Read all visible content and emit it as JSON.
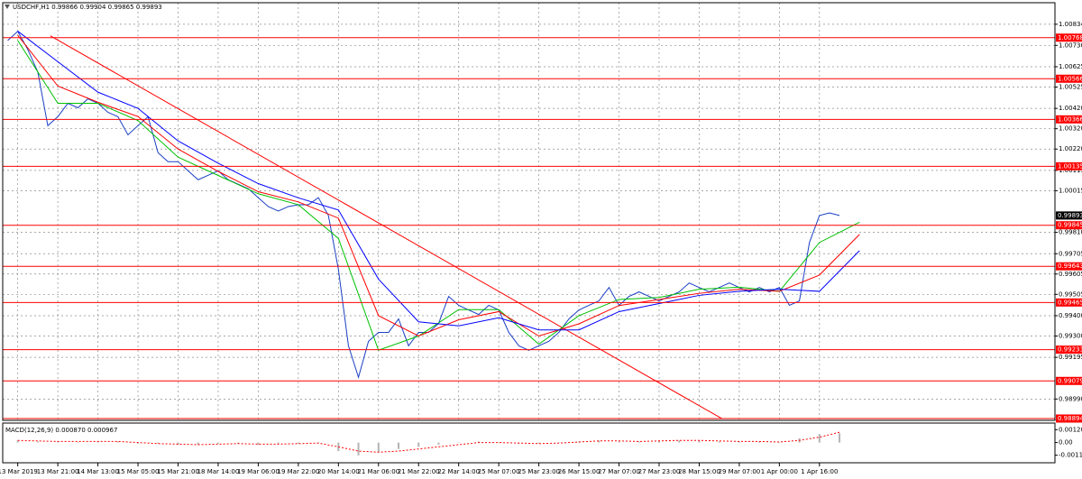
{
  "chart_data": [
    {
      "type": "line",
      "title": "USDCHF,H1 0.99866 0.99904 0.99865 0.99893",
      "xlim": [
        -6,
        414
      ],
      "ylim": [
        0.98885,
        1.0094
      ],
      "grid": true,
      "xticks": [
        {
          "value": 0,
          "label": "13 Mar 2019"
        },
        {
          "value": 16,
          "label": "13 Mar 21:00"
        },
        {
          "value": 32,
          "label": "14 Mar 13:00"
        },
        {
          "value": 48,
          "label": "15 Mar 05:00"
        },
        {
          "value": 64,
          "label": "15 Mar 21:00"
        },
        {
          "value": 80,
          "label": "18 Mar 14:00"
        },
        {
          "value": 96,
          "label": "19 Mar 06:00"
        },
        {
          "value": 112,
          "label": "19 Mar 22:00"
        },
        {
          "value": 128,
          "label": "20 Mar 14:00"
        },
        {
          "value": 144,
          "label": "21 Mar 06:00"
        },
        {
          "value": 160,
          "label": "21 Mar 22:00"
        },
        {
          "value": 176,
          "label": "22 Mar 14:00"
        },
        {
          "value": 192,
          "label": "25 Mar 07:00"
        },
        {
          "value": 208,
          "label": "25 Mar 23:00"
        },
        {
          "value": 224,
          "label": "26 Mar 15:00"
        },
        {
          "value": 240,
          "label": "27 Mar 07:00"
        },
        {
          "value": 256,
          "label": "27 Mar 23:00"
        },
        {
          "value": 272,
          "label": "28 Mar 15:00"
        },
        {
          "value": 288,
          "label": "29 Mar 07:00"
        },
        {
          "value": 304,
          "label": "1 Apr 00:00"
        },
        {
          "value": 320,
          "label": "1 Apr 16:00"
        }
      ],
      "yticks": [
        {
          "value": 1.00834,
          "label": "1.00834"
        },
        {
          "value": 1.0073,
          "label": "1.00730"
        },
        {
          "value": 1.00625,
          "label": "1.00625"
        },
        {
          "value": 1.00525,
          "label": "1.00525"
        },
        {
          "value": 1.0042,
          "label": "1.00420"
        },
        {
          "value": 1.0032,
          "label": "1.00320"
        },
        {
          "value": 1.0022,
          "label": "1.00220"
        },
        {
          "value": 1.00115,
          "label": "1.00115"
        },
        {
          "value": 1.00015,
          "label": "1.00015"
        },
        {
          "value": 0.9981,
          "label": "0.99810"
        },
        {
          "value": 0.99705,
          "label": "0.99705"
        },
        {
          "value": 0.99605,
          "label": "0.99605"
        },
        {
          "value": 0.99505,
          "label": "0.99505"
        },
        {
          "value": 0.994,
          "label": "0.99400"
        },
        {
          "value": 0.993,
          "label": "0.99300"
        },
        {
          "value": 0.99195,
          "label": "0.99195"
        },
        {
          "value": 0.9899,
          "label": "0.98990"
        }
      ],
      "levels": [
        1.00768,
        1.00566,
        1.00366,
        1.00135,
        0.99845,
        0.99643,
        0.99465,
        0.99233,
        0.99079,
        0.98894
      ],
      "level_color": "#ff0000",
      "current_price": 0.99893,
      "trendline": {
        "color": "#ff0000",
        "x": [
          13,
          281
        ],
        "values": [
          1.00777,
          0.98894
        ]
      },
      "series": [
        {
          "color": "#1a3fc4",
          "x": [
            -4,
            0,
            4,
            8,
            12,
            16,
            20,
            24,
            28,
            32,
            36,
            40,
            44,
            48,
            52,
            56,
            60,
            64,
            68,
            72,
            76,
            80,
            84,
            88,
            92,
            96,
            100,
            104,
            108,
            112,
            116,
            120,
            124,
            128,
            132,
            136,
            140,
            144,
            148,
            152,
            156,
            160,
            164,
            168,
            172,
            176,
            180,
            184,
            188,
            192,
            196,
            200,
            204,
            208,
            212,
            216,
            220,
            224,
            228,
            232,
            236,
            240,
            244,
            248,
            252,
            256,
            260,
            264,
            268,
            272,
            276,
            280,
            284,
            288,
            292,
            296,
            300,
            304,
            308,
            312,
            316,
            320,
            324,
            328
          ],
          "values": [
            1.00754,
            1.00799,
            1.0071,
            1.006,
            1.00335,
            1.00379,
            1.00445,
            1.00423,
            1.00467,
            1.00445,
            1.00401,
            1.00379,
            1.0029,
            1.00335,
            1.00379,
            1.00202,
            1.00158,
            1.00158,
            1.00113,
            1.00069,
            1.00091,
            1.00113,
            1.00069,
            1.00047,
            1.00025,
            0.99981,
            0.99937,
            0.99915,
            0.99937,
            0.99946,
            0.99946,
            0.99981,
            0.99893,
            0.99627,
            0.99252,
            0.99097,
            0.99274,
            0.99318,
            0.99318,
            0.99384,
            0.99252,
            0.99318,
            0.99318,
            0.99362,
            0.99495,
            0.99451,
            0.99428,
            0.99406,
            0.99451,
            0.99428,
            0.99318,
            0.99252,
            0.9923,
            0.99252,
            0.99274,
            0.99318,
            0.99384,
            0.99428,
            0.99451,
            0.99473,
            0.99539,
            0.99451,
            0.99495,
            0.99517,
            0.99495,
            0.99473,
            0.99495,
            0.99517,
            0.99561,
            0.99539,
            0.99517,
            0.99539,
            0.99561,
            0.99539,
            0.99517,
            0.99539,
            0.99517,
            0.99539,
            0.99451,
            0.99473,
            0.9976,
            0.99893,
            0.99906,
            0.99893
          ]
        },
        {
          "color": "#00c000",
          "x": [
            0,
            16,
            32,
            48,
            64,
            80,
            96,
            112,
            128,
            144,
            160,
            176,
            192,
            208,
            224,
            240,
            256,
            272,
            288,
            304,
            320,
            336
          ],
          "values": [
            1.00754,
            1.00445,
            1.00445,
            1.0036,
            1.0018,
            1.0009,
            1.0,
            0.99946,
            0.9978,
            0.9923,
            0.993,
            0.9943,
            0.9943,
            0.9926,
            0.994,
            0.9948,
            0.9949,
            0.9953,
            0.9954,
            0.9952,
            0.9976,
            0.9986
          ]
        },
        {
          "color": "#ff0000",
          "x": [
            0,
            16,
            32,
            48,
            64,
            80,
            96,
            112,
            128,
            144,
            160,
            176,
            192,
            208,
            224,
            240,
            256,
            272,
            288,
            304,
            320,
            336
          ],
          "values": [
            1.0078,
            1.0053,
            1.0045,
            1.0038,
            1.0022,
            1.0011,
            1.0001,
            0.9996,
            0.9988,
            0.994,
            0.993,
            0.9938,
            0.9942,
            0.993,
            0.9936,
            0.9945,
            0.9948,
            0.9951,
            0.9953,
            0.9952,
            0.996,
            0.998
          ]
        },
        {
          "color": "#0000ff",
          "x": [
            0,
            16,
            32,
            48,
            64,
            80,
            96,
            112,
            128,
            144,
            160,
            176,
            192,
            208,
            224,
            240,
            256,
            272,
            288,
            304,
            320,
            336
          ],
          "values": [
            1.008,
            1.0065,
            1.005,
            1.0042,
            1.0026,
            1.0015,
            1.0005,
            0.9998,
            0.9992,
            0.9958,
            0.9937,
            0.9935,
            0.9939,
            0.9933,
            0.9933,
            0.9942,
            0.9946,
            0.995,
            0.9952,
            0.9953,
            0.9952,
            0.9972
          ]
        }
      ]
    },
    {
      "type": "bar",
      "title": "MACD(12,26,9) 0.000870 0.000967",
      "xlim": [
        -6,
        414
      ],
      "ylim": [
        -0.00189,
        0.00182
      ],
      "yticks": [
        0.001204,
        {
          "value": 0,
          "label": "0.00"
        },
        -0.001185
      ],
      "color": "#b4b4b4",
      "x": [
        0,
        8,
        16,
        24,
        32,
        40,
        48,
        56,
        64,
        72,
        80,
        88,
        96,
        104,
        112,
        120,
        128,
        136,
        144,
        152,
        160,
        168,
        176,
        184,
        192,
        200,
        208,
        216,
        224,
        232,
        240,
        248,
        256,
        264,
        272,
        280,
        288,
        296,
        304,
        312,
        320,
        328
      ],
      "values": [
        0.0002,
        0.0001,
        0.0001,
        5e-05,
        0.0001,
        0.0001,
        -0.0001,
        -0.0001,
        -0.0002,
        -0.0002,
        -0.0001,
        -0.0001,
        -0.0002,
        -0.0001,
        -0.0001,
        0,
        -0.0008,
        -0.0012,
        -0.0009,
        -0.0006,
        -0.0004,
        -0.0002,
        0,
        0.0001,
        0,
        -0.0001,
        -0.0001,
        0,
        0.0001,
        0.0002,
        0.0001,
        0.0001,
        0.0002,
        0.0002,
        0.0002,
        0.0001,
        0.0001,
        0.0001,
        0,
        0.0004,
        0.0008,
        0.00087
      ],
      "signal": {
        "color": "#ff0000",
        "values": [
          0.0002,
          0.00015,
          0.0001,
          0.0001,
          0.0001,
          0.0001,
          0,
          -0.0001,
          -0.00015,
          -0.0002,
          -0.00015,
          -0.0001,
          -0.00015,
          -0.00015,
          -0.0001,
          -5e-05,
          -0.0004,
          -0.0008,
          -0.0009,
          -0.0008,
          -0.0006,
          -0.0004,
          -0.0002,
          0,
          0,
          -5e-05,
          -0.0001,
          -5e-05,
          5e-05,
          0.00015,
          0.00015,
          0.0001,
          0.00015,
          0.0002,
          0.0002,
          0.00015,
          0.0001,
          0.0001,
          5e-05,
          0.0002,
          0.0005,
          0.000967
        ]
      }
    }
  ]
}
